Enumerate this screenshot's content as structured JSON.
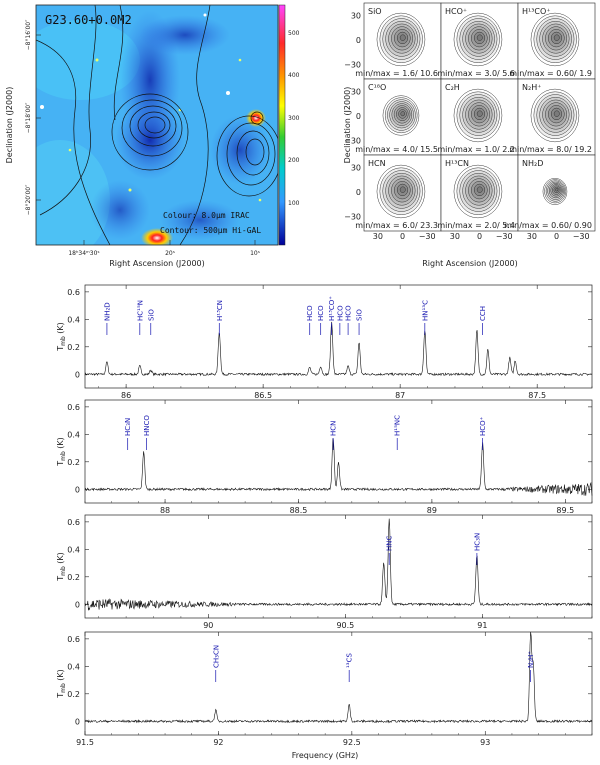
{
  "map": {
    "title": "G23.60+0.0M2",
    "colour_label": "Colour: 8.0µm IRAC",
    "contour_label": "Contour: 500µm Hi-GAL",
    "xlabel": "Right Ascension (J2000)",
    "ylabel": "Declination (J2000)",
    "xticks": [
      "18ʰ34ᵐ30ˢ",
      "20ˢ",
      "10ˢ"
    ],
    "yticks": [
      "−8°16′00″",
      "−8°18′00″",
      "−8°20′00″"
    ],
    "colorbar_ticks": [
      "500",
      "400",
      "300",
      "200",
      "100"
    ],
    "colorbar_colors": [
      "#ff44ff",
      "#ff2a2a",
      "#ff9900",
      "#ffff00",
      "#33cc33",
      "#00cccc",
      "#3399ff",
      "#000099"
    ]
  },
  "panels": {
    "xlabel": "Right Ascension (J2000)",
    "ylabel": "Declination (J2000)",
    "ticks": [
      "30",
      "0",
      "−30"
    ],
    "yticks": [
      "30",
      "0",
      "−30"
    ],
    "items": [
      {
        "mol": "SiO",
        "minmax": "min/max = 1.6/ 10.6"
      },
      {
        "mol": "HCO⁺",
        "minmax": "min/max = 3.0/ 5.6"
      },
      {
        "mol": "H¹³CO⁺",
        "minmax": "min/max = 0.60/ 1.9"
      },
      {
        "mol": "C¹⁸O",
        "minmax": "min/max = 4.0/ 15.5"
      },
      {
        "mol": "C₂H",
        "minmax": "min/max = 1.0/ 2.2"
      },
      {
        "mol": "N₂H⁺",
        "minmax": "min/max = 8.0/ 19.2"
      },
      {
        "mol": "HCN",
        "minmax": "min/max = 6.0/ 23.3"
      },
      {
        "mol": "H¹³CN",
        "minmax": "min/max = 2.0/ 5.4"
      },
      {
        "mol": "NH₂D",
        "minmax": "min/max = 0.60/ 0.90"
      }
    ]
  },
  "chart_data": [
    {
      "type": "line",
      "xlabel": "",
      "ylabel": "T_mb (K)",
      "xlim": [
        85.85,
        87.7
      ],
      "ylim": [
        -0.1,
        0.65
      ],
      "xticks": [
        86,
        86.5,
        87,
        87.5
      ],
      "yticks": [
        0,
        0.2,
        0.4,
        0.6
      ],
      "peaks": [
        [
          85.93,
          0.09
        ],
        [
          86.05,
          0.06
        ],
        [
          86.09,
          0.03
        ],
        [
          86.34,
          0.31
        ],
        [
          86.67,
          0.05
        ],
        [
          86.71,
          0.06
        ],
        [
          86.75,
          0.38
        ],
        [
          86.81,
          0.06
        ],
        [
          86.85,
          0.23
        ],
        [
          87.09,
          0.32
        ],
        [
          87.28,
          0.32
        ],
        [
          87.32,
          0.18
        ],
        [
          87.4,
          0.12
        ],
        [
          87.42,
          0.1
        ]
      ],
      "line_ids": [
        {
          "label": "NH₂D",
          "x": 85.93
        },
        {
          "label": "HC¹⁵N",
          "x": 86.05
        },
        {
          "label": "SiO",
          "x": 86.09
        },
        {
          "label": "H¹³CN",
          "x": 86.34
        },
        {
          "label": "HCO",
          "x": 86.67
        },
        {
          "label": "HCO",
          "x": 86.71
        },
        {
          "label": "H¹³CO⁺",
          "x": 86.75
        },
        {
          "label": "HCO",
          "x": 86.78
        },
        {
          "label": "HCO",
          "x": 86.81
        },
        {
          "label": "SiO",
          "x": 86.85
        },
        {
          "label": "HN¹³C",
          "x": 87.09
        },
        {
          "label": "CCH",
          "x": 87.3
        }
      ]
    },
    {
      "type": "line",
      "xlabel": "",
      "ylabel": "T_mb (K)",
      "xlim": [
        87.7,
        89.6
      ],
      "ylim": [
        -0.1,
        0.65
      ],
      "xticks": [
        88,
        88.5,
        89,
        89.5
      ],
      "yticks": [
        0,
        0.2,
        0.4,
        0.6
      ],
      "peaks": [
        [
          87.92,
          0.28
        ],
        [
          88.63,
          0.38
        ],
        [
          88.65,
          0.2
        ],
        [
          89.19,
          0.34
        ]
      ],
      "line_ids": [
        {
          "label": "HC₃N",
          "x": 87.86
        },
        {
          "label": "HNCO",
          "x": 87.93
        },
        {
          "label": "HCN",
          "x": 88.63
        },
        {
          "label": "H¹⁵NC",
          "x": 88.87
        },
        {
          "label": "HCO⁺",
          "x": 89.19
        }
      ]
    },
    {
      "type": "line",
      "xlabel": "",
      "ylabel": "T_mb (K)",
      "xlim": [
        89.55,
        91.4
      ],
      "ylim": [
        -0.1,
        0.65
      ],
      "xticks": [
        90,
        90.5,
        91
      ],
      "yticks": [
        0,
        0.2,
        0.4,
        0.6
      ],
      "peaks": [
        [
          90.66,
          0.62
        ],
        [
          90.64,
          0.3
        ],
        [
          90.98,
          0.36
        ]
      ],
      "line_ids": [
        {
          "label": "HNC",
          "x": 90.66
        },
        {
          "label": "HC₃N",
          "x": 90.98
        }
      ]
    },
    {
      "type": "line",
      "xlabel": "Frequency (GHz)",
      "ylabel": "T_mb (K)",
      "xlim": [
        91.5,
        93.4
      ],
      "ylim": [
        -0.1,
        0.65
      ],
      "xticks": [
        91.5,
        92,
        92.5,
        93
      ],
      "yticks": [
        0,
        0.2,
        0.4,
        0.6
      ],
      "peaks": [
        [
          91.99,
          0.08
        ],
        [
          92.49,
          0.12
        ],
        [
          93.17,
          0.64
        ],
        [
          93.18,
          0.4
        ]
      ],
      "line_ids": [
        {
          "label": "CH₃CN",
          "x": 91.99
        },
        {
          "label": "¹³CS",
          "x": 92.49
        },
        {
          "label": "N₂H⁺",
          "x": 93.17
        }
      ]
    }
  ]
}
